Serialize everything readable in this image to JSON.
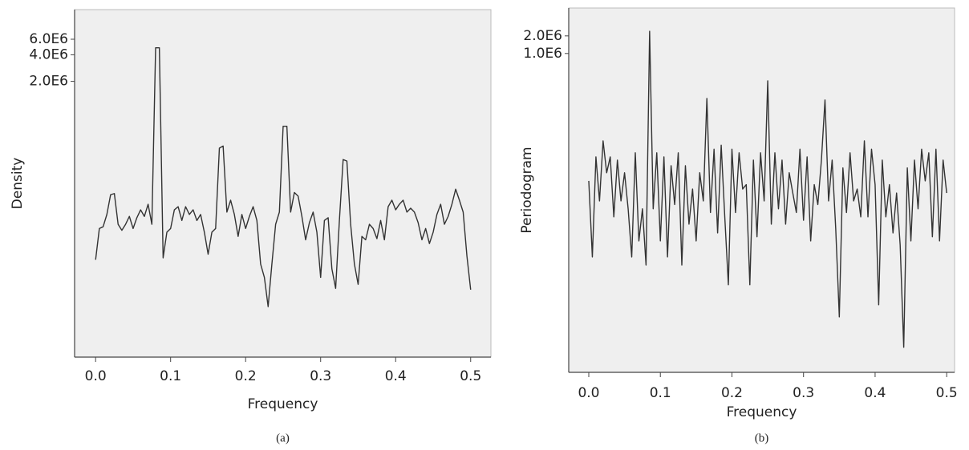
{
  "chart_data": [
    {
      "type": "line",
      "ylabel": "Density",
      "xlabel": "Frequency",
      "caption": "(a)",
      "color": "#333333",
      "log_y": true,
      "xlim": [
        -0.028,
        0.527
      ],
      "xticks": [
        {
          "value": 0,
          "label": "0.0"
        },
        0.1,
        0.2,
        0.3,
        0.4,
        0.5
      ],
      "ylim": [
        1500,
        13000000
      ],
      "yticks": [
        {
          "value": 2000000,
          "label": "2.0E6"
        },
        {
          "value": 4000000,
          "label": "4.0E6"
        },
        {
          "value": 6000000,
          "label": "6.0E6"
        }
      ],
      "x": [
        0,
        0.005,
        0.01,
        0.015,
        0.02,
        0.025,
        0.03,
        0.035,
        0.04,
        0.045,
        0.05,
        0.055,
        0.06,
        0.065,
        0.07,
        0.075,
        0.08,
        0.085,
        0.09,
        0.095,
        0.1,
        0.105,
        0.11,
        0.115,
        0.12,
        0.125,
        0.13,
        0.135,
        0.14,
        0.145,
        0.15,
        0.155,
        0.16,
        0.165,
        0.17,
        0.175,
        0.18,
        0.185,
        0.19,
        0.195,
        0.2,
        0.205,
        0.21,
        0.215,
        0.22,
        0.225,
        0.23,
        0.235,
        0.24,
        0.245,
        0.25,
        0.255,
        0.26,
        0.265,
        0.27,
        0.275,
        0.28,
        0.285,
        0.29,
        0.295,
        0.3,
        0.305,
        0.31,
        0.315,
        0.32,
        0.325,
        0.33,
        0.335,
        0.34,
        0.345,
        0.35,
        0.355,
        0.36,
        0.365,
        0.37,
        0.375,
        0.38,
        0.385,
        0.39,
        0.395,
        0.4,
        0.405,
        0.41,
        0.415,
        0.42,
        0.425,
        0.43,
        0.435,
        0.44,
        0.445,
        0.45,
        0.455,
        0.46,
        0.465,
        0.47,
        0.475,
        0.48,
        0.485,
        0.49,
        0.495,
        0.5
      ],
      "values": [
        19000,
        43000,
        45000,
        62000,
        104000,
        107000,
        48000,
        41000,
        48000,
        59000,
        43000,
        57000,
        70000,
        59000,
        81000,
        48000,
        4800000,
        4800000,
        20000,
        39000,
        43000,
        70000,
        76000,
        53000,
        76000,
        62000,
        70000,
        53000,
        62000,
        39000,
        22000,
        39000,
        43000,
        350000,
        370000,
        66000,
        90000,
        62000,
        35000,
        62000,
        43000,
        59000,
        76000,
        53000,
        17000,
        12000,
        5600,
        17000,
        48000,
        66000,
        620000,
        620000,
        66000,
        110000,
        100000,
        59000,
        32000,
        50000,
        66000,
        39000,
        12000,
        53000,
        57000,
        15000,
        9000,
        53000,
        260000,
        250000,
        48000,
        17000,
        10000,
        35000,
        32000,
        48000,
        43000,
        33000,
        53000,
        32000,
        76000,
        90000,
        70000,
        81000,
        90000,
        66000,
        73000,
        66000,
        50000,
        32000,
        43000,
        29000,
        39000,
        62000,
        81000,
        48000,
        59000,
        81000,
        120000,
        90000,
        66000,
        21000,
        8700
      ]
    },
    {
      "type": "line",
      "ylabel": "Periodogram",
      "xlabel": "Frequency",
      "caption": "(b)",
      "color": "#333333",
      "log_y": true,
      "xlim": [
        -0.028,
        0.511
      ],
      "xticks": [
        {
          "value": 0,
          "label": "0.0"
        },
        0.1,
        0.2,
        0.3,
        0.4,
        0.5
      ],
      "ylim": [
        3.5,
        6000000
      ],
      "yticks": [
        {
          "value": 1000000,
          "label": "1.0E6"
        },
        {
          "value": 2000000,
          "label": "2.0E6"
        }
      ],
      "x": [
        0,
        0.005,
        0.01,
        0.015,
        0.02,
        0.025,
        0.03,
        0.035,
        0.04,
        0.045,
        0.05,
        0.055,
        0.06,
        0.065,
        0.07,
        0.075,
        0.08,
        0.085,
        0.09,
        0.095,
        0.1,
        0.105,
        0.11,
        0.115,
        0.12,
        0.125,
        0.13,
        0.135,
        0.14,
        0.145,
        0.15,
        0.155,
        0.16,
        0.165,
        0.17,
        0.175,
        0.18,
        0.185,
        0.19,
        0.195,
        0.2,
        0.205,
        0.21,
        0.215,
        0.22,
        0.225,
        0.23,
        0.235,
        0.24,
        0.245,
        0.25,
        0.255,
        0.26,
        0.265,
        0.27,
        0.275,
        0.28,
        0.285,
        0.29,
        0.295,
        0.3,
        0.305,
        0.31,
        0.315,
        0.32,
        0.325,
        0.33,
        0.335,
        0.34,
        0.345,
        0.35,
        0.355,
        0.36,
        0.365,
        0.37,
        0.375,
        0.38,
        0.385,
        0.39,
        0.395,
        0.4,
        0.405,
        0.41,
        0.415,
        0.42,
        0.425,
        0.43,
        0.435,
        0.44,
        0.445,
        0.45,
        0.455,
        0.46,
        0.465,
        0.47,
        0.475,
        0.48,
        0.485,
        0.49,
        0.495,
        0.5
      ],
      "values": [
        6600,
        330,
        17000,
        3000,
        32000,
        9100,
        17000,
        1600,
        15000,
        3000,
        9100,
        2200,
        330,
        20000,
        620,
        2200,
        240,
        2400000,
        2200,
        20000,
        620,
        17000,
        330,
        12000,
        2600,
        20000,
        240,
        12000,
        1200,
        4800,
        620,
        9100,
        3000,
        170000,
        1900,
        23000,
        850,
        27000,
        1600,
        110,
        23000,
        1900,
        20000,
        4800,
        5700,
        110,
        15000,
        730,
        20000,
        3000,
        340000,
        1200,
        20000,
        2200,
        15000,
        1200,
        9100,
        4100,
        1900,
        23000,
        1400,
        17000,
        620,
        5700,
        2600,
        15000,
        160000,
        3000,
        15000,
        1000,
        31,
        11000,
        1900,
        20000,
        3000,
        4800,
        1600,
        32000,
        1600,
        23000,
        5700,
        50,
        15000,
        1600,
        5700,
        850,
        4100,
        530,
        9.4,
        11000,
        620,
        15000,
        2200,
        23000,
        6600,
        20000,
        730,
        23000,
        620,
        15000,
        4100
      ]
    }
  ]
}
